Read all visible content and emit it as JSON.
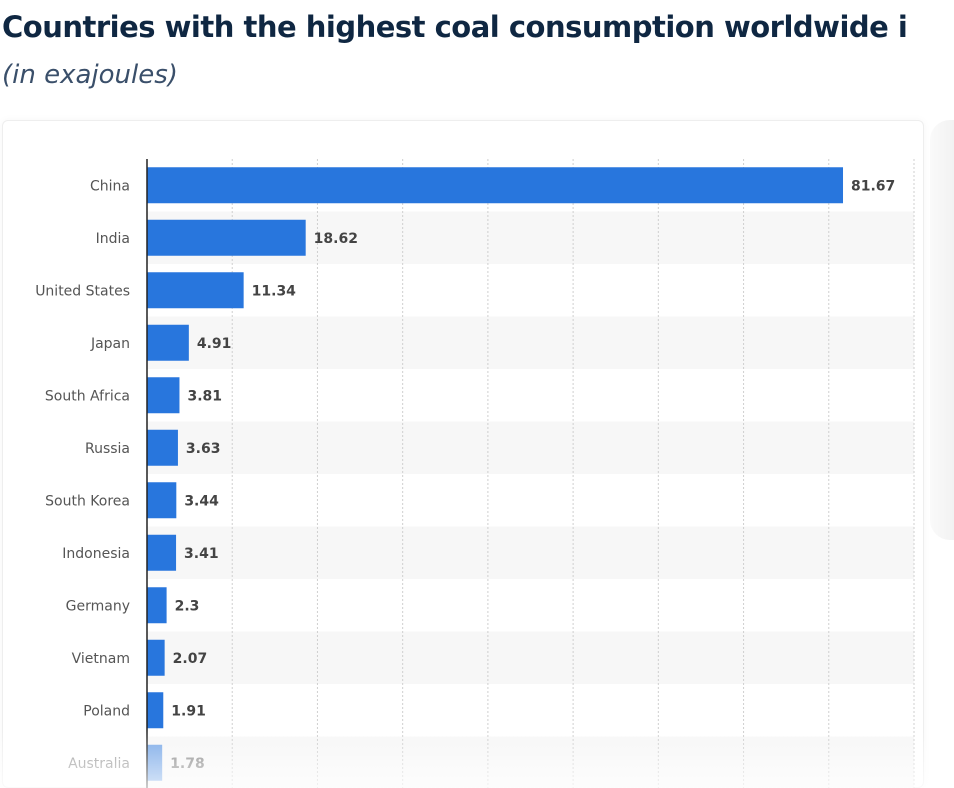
{
  "title": "Countries with the highest coal consumption worldwide i",
  "subtitle": "(in exajoules)",
  "chart_data": {
    "type": "bar",
    "orientation": "horizontal",
    "title": "Countries with the highest coal consumption worldwide i",
    "subtitle": "(in exajoules)",
    "categories": [
      "China",
      "India",
      "United States",
      "Japan",
      "South Africa",
      "Russia",
      "South Korea",
      "Indonesia",
      "Germany",
      "Vietnam",
      "Poland",
      "Australia"
    ],
    "values": [
      81.67,
      18.62,
      11.34,
      4.91,
      3.81,
      3.63,
      3.44,
      3.41,
      2.3,
      2.07,
      1.91,
      1.78
    ],
    "labels": [
      "81.67",
      "18.62",
      "11.34",
      "4.91",
      "3.81",
      "3.63",
      "3.44",
      "3.41",
      "2.3",
      "2.07",
      "1.91",
      "1.78"
    ],
    "xlim": [
      0,
      90
    ],
    "grid": true,
    "bar_color": "#2876dd"
  }
}
